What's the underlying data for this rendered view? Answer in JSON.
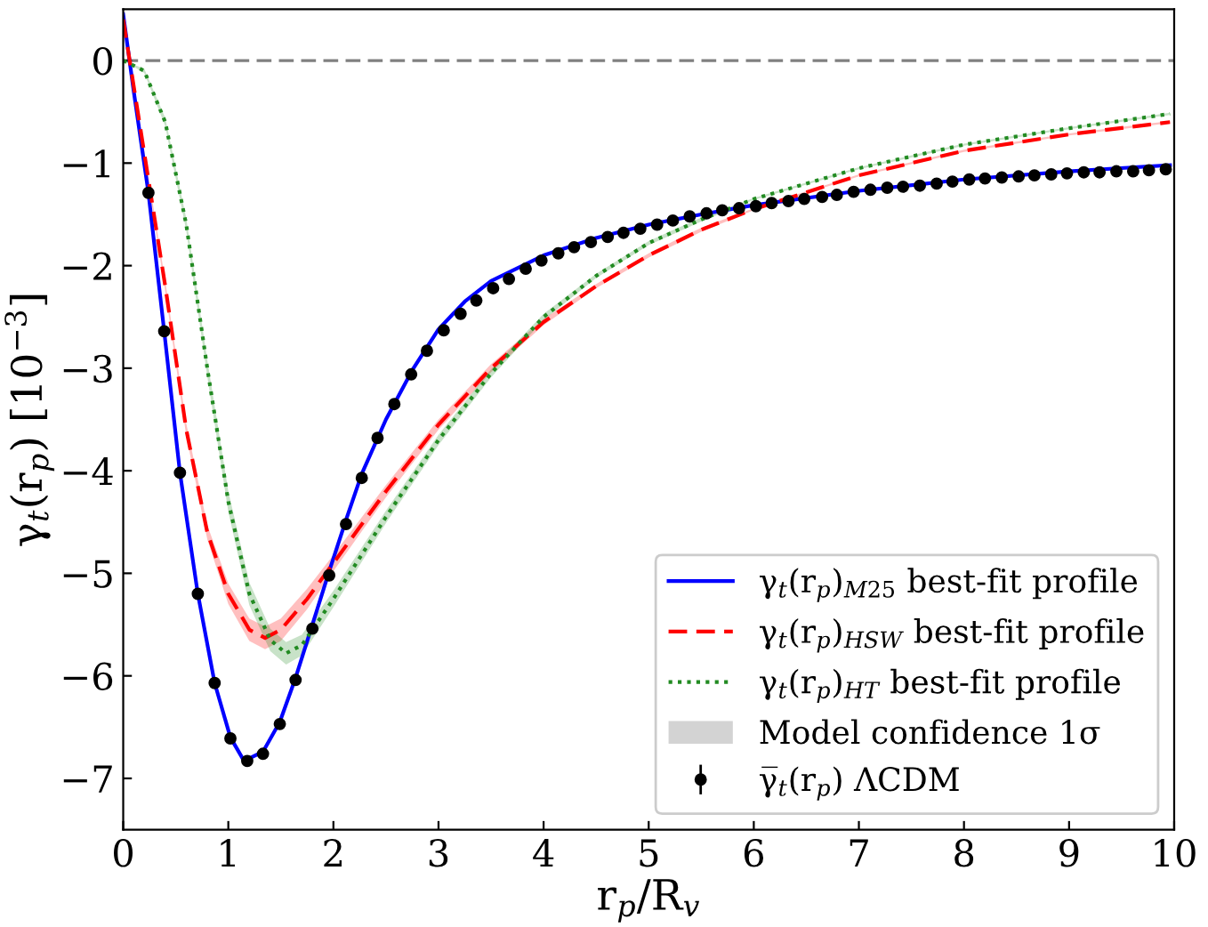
{
  "chart_data": {
    "type": "line",
    "xlabel": "r$_{p}$/R$_{v}$",
    "ylabel": "γ$_{t}$(r$_{p}$) [10$^{−3}$]",
    "xlim": [
      0,
      10
    ],
    "ylim": [
      -7.5,
      0.5
    ],
    "xticks": [
      0,
      1,
      2,
      3,
      4,
      5,
      6,
      7,
      8,
      9,
      10
    ],
    "yticks": [
      {
        "value": 0,
        "label": "0"
      },
      {
        "value": -1,
        "label": "−1"
      },
      {
        "value": -2,
        "label": "−2"
      },
      {
        "value": -3,
        "label": "−3"
      },
      {
        "value": -4,
        "label": "−4"
      },
      {
        "value": -5,
        "label": "−5"
      },
      {
        "value": -6,
        "label": "−6"
      },
      {
        "value": -7,
        "label": "−7"
      }
    ],
    "grid": false,
    "legend": "bottom right",
    "ref_lines": [
      {
        "axis": "y",
        "value": 0,
        "color": "#808080",
        "line_style": "dashed"
      }
    ],
    "series": [
      {
        "name": "γ$_{t}$(r$_{p}$)$_{M25}$ best-fit profile",
        "color": "#0000ff",
        "line_style": "solid",
        "x": [
          0,
          0.1,
          0.24,
          0.39,
          0.54,
          0.71,
          0.87,
          1.02,
          1.15,
          1.33,
          1.49,
          1.64,
          1.8,
          1.96,
          2.12,
          2.27,
          2.5,
          2.75,
          3.0,
          3.25,
          3.5,
          4.0,
          4.5,
          5.0,
          5.5,
          6,
          7,
          8,
          9,
          9.96
        ],
        "values": [
          0.45,
          -0.3,
          -1.29,
          -2.64,
          -4.02,
          -5.2,
          -6.07,
          -6.6,
          -6.83,
          -6.74,
          -6.45,
          -6.02,
          -5.5,
          -4.98,
          -4.48,
          -4.03,
          -3.5,
          -3.02,
          -2.62,
          -2.35,
          -2.15,
          -1.9,
          -1.73,
          -1.6,
          -1.5,
          -1.41,
          -1.27,
          -1.16,
          -1.08,
          -1.02
        ]
      },
      {
        "name": "γ$_{t}$(r$_{p}$)$_{HSW}$ best-fit profile",
        "color": "#ff0000",
        "line_style": "dashed",
        "x": [
          0,
          0.2,
          0.4,
          0.6,
          0.8,
          1.0,
          1.2,
          1.35,
          1.5,
          1.75,
          2.0,
          2.5,
          3,
          3.5,
          4,
          4.5,
          5,
          5.5,
          6,
          7,
          8,
          9,
          9.96
        ],
        "values": [
          0.4,
          -0.9,
          -2.2,
          -3.6,
          -4.6,
          -5.2,
          -5.55,
          -5.63,
          -5.55,
          -5.25,
          -4.9,
          -4.2,
          -3.55,
          -3.0,
          -2.55,
          -2.2,
          -1.9,
          -1.65,
          -1.45,
          -1.12,
          -0.88,
          -0.72,
          -0.6
        ],
        "lower": [
          0.4,
          -0.93,
          -2.25,
          -3.66,
          -4.67,
          -5.3,
          -5.66,
          -5.74,
          -5.66,
          -5.35,
          -4.98,
          -4.26,
          -3.6,
          -3.04,
          -2.58,
          -2.22,
          -1.92,
          -1.67,
          -1.46,
          -1.13,
          -0.89,
          -0.73,
          -0.61
        ],
        "upper": [
          0.4,
          -0.87,
          -2.15,
          -3.54,
          -4.53,
          -5.1,
          -5.44,
          -5.52,
          -5.44,
          -5.15,
          -4.82,
          -4.14,
          -3.5,
          -2.96,
          -2.52,
          -2.18,
          -1.88,
          -1.63,
          -1.44,
          -1.11,
          -0.87,
          -0.71,
          -0.59
        ]
      },
      {
        "name": "γ$_{t}$(r$_{p}$)$_{HT}$ best-fit profile",
        "color": "#228b22",
        "line_style": "dotted",
        "x": [
          0,
          0.2,
          0.4,
          0.6,
          0.8,
          1.0,
          1.2,
          1.4,
          1.55,
          1.7,
          2.0,
          2.5,
          3,
          3.5,
          4,
          4.5,
          5,
          5.5,
          6,
          7,
          8,
          9,
          9.96
        ],
        "values": [
          0.0,
          -0.1,
          -0.6,
          -1.6,
          -3.0,
          -4.3,
          -5.2,
          -5.65,
          -5.78,
          -5.7,
          -5.25,
          -4.45,
          -3.7,
          -3.05,
          -2.5,
          -2.1,
          -1.78,
          -1.55,
          -1.35,
          -1.05,
          -0.82,
          -0.66,
          -0.52
        ],
        "lower": [
          0.0,
          -0.12,
          -0.64,
          -1.66,
          -3.08,
          -4.4,
          -5.31,
          -5.76,
          -5.89,
          -5.8,
          -5.33,
          -4.51,
          -3.75,
          -3.09,
          -2.53,
          -2.12,
          -1.8,
          -1.57,
          -1.36,
          -1.06,
          -0.83,
          -0.67,
          -0.53
        ],
        "upper": [
          0.0,
          -0.08,
          -0.56,
          -1.54,
          -2.92,
          -4.2,
          -5.09,
          -5.54,
          -5.67,
          -5.6,
          -5.17,
          -4.39,
          -3.65,
          -3.01,
          -2.47,
          -2.08,
          -1.76,
          -1.53,
          -1.34,
          -1.04,
          -0.81,
          -0.65,
          -0.51
        ]
      },
      {
        "name": "Model confidence 1σ",
        "type": "area",
        "color": "#d3d3d3"
      },
      {
        "name": "γ̅$_{t}$(r$_{p}$) ΛCDM",
        "type": "scatter",
        "color": "#000000",
        "marker": "circle",
        "x": [
          0.24,
          0.39,
          0.54,
          0.71,
          0.87,
          1.02,
          1.18,
          1.33,
          1.49,
          1.64,
          1.8,
          1.96,
          2.12,
          2.27,
          2.42,
          2.58,
          2.74,
          2.89,
          3.05,
          3.21,
          3.36,
          3.52,
          3.67,
          3.83,
          3.98,
          4.14,
          4.29,
          4.45,
          4.61,
          4.76,
          4.92,
          5.08,
          5.23,
          5.39,
          5.55,
          5.7,
          5.86,
          6.02,
          6.17,
          6.33,
          6.48,
          6.65,
          6.79,
          6.95,
          7.11,
          7.27,
          7.42,
          7.58,
          7.74,
          7.89,
          8.05,
          8.2,
          8.36,
          8.52,
          8.67,
          8.83,
          8.98,
          9.14,
          9.29,
          9.45,
          9.61,
          9.76,
          9.92
        ],
        "values": [
          -1.29,
          -2.64,
          -4.02,
          -5.2,
          -6.07,
          -6.61,
          -6.83,
          -6.76,
          -6.47,
          -6.04,
          -5.54,
          -5.02,
          -4.52,
          -4.07,
          -3.68,
          -3.35,
          -3.06,
          -2.83,
          -2.63,
          -2.47,
          -2.34,
          -2.22,
          -2.13,
          -2.03,
          -1.95,
          -1.88,
          -1.82,
          -1.77,
          -1.72,
          -1.68,
          -1.64,
          -1.6,
          -1.56,
          -1.52,
          -1.49,
          -1.46,
          -1.44,
          -1.42,
          -1.39,
          -1.37,
          -1.35,
          -1.33,
          -1.31,
          -1.28,
          -1.26,
          -1.24,
          -1.23,
          -1.22,
          -1.2,
          -1.18,
          -1.16,
          -1.15,
          -1.14,
          -1.13,
          -1.12,
          -1.11,
          -1.1,
          -1.09,
          -1.09,
          -1.08,
          -1.08,
          -1.07,
          -1.06
        ]
      }
    ]
  }
}
